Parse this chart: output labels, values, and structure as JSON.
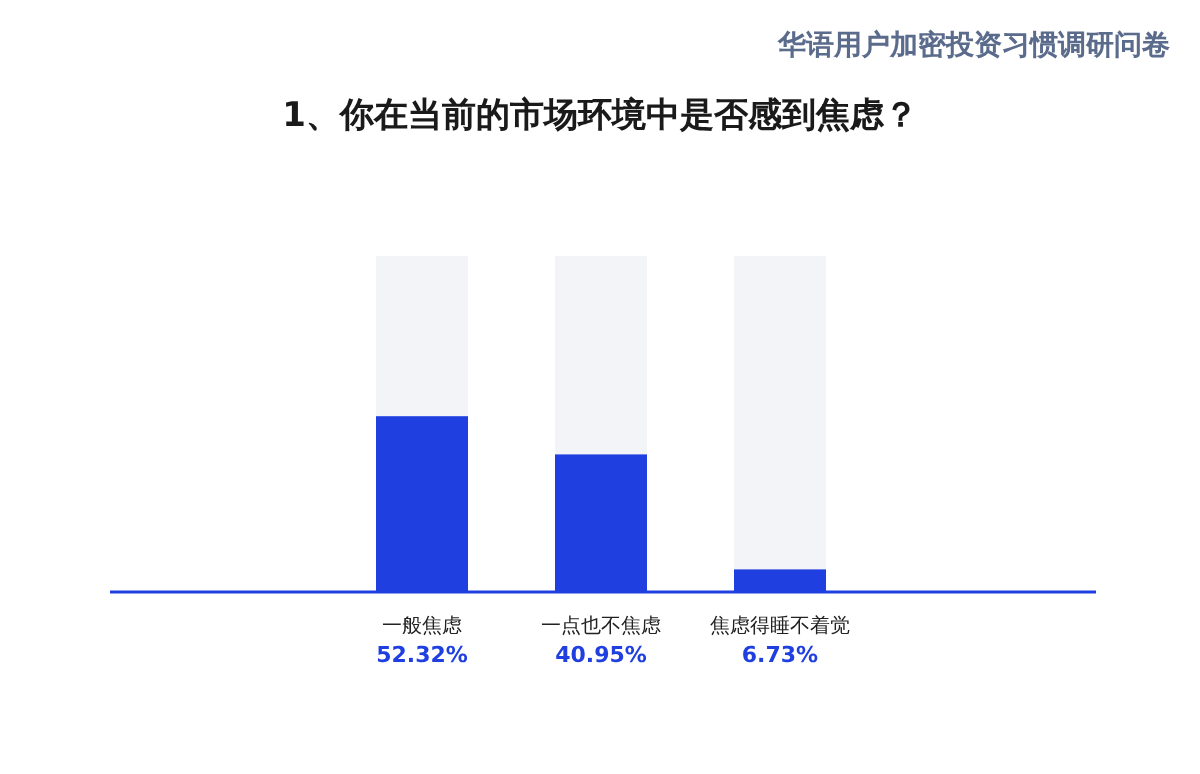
{
  "chart_data": {
    "type": "bar",
    "title": "1、你在当前的市场环境中是否感到焦虑？",
    "subtitle": "华语用户加密投资习惯调研问卷",
    "categories": [
      "一般焦虑",
      "一点也不焦虑",
      "焦虑得睡不着觉"
    ],
    "values": [
      52.32,
      40.95,
      6.73
    ],
    "value_labels": [
      "52.32%",
      "40.95%",
      "6.73%"
    ],
    "color": "#1f3fe0",
    "ylim": [
      0,
      100
    ]
  }
}
